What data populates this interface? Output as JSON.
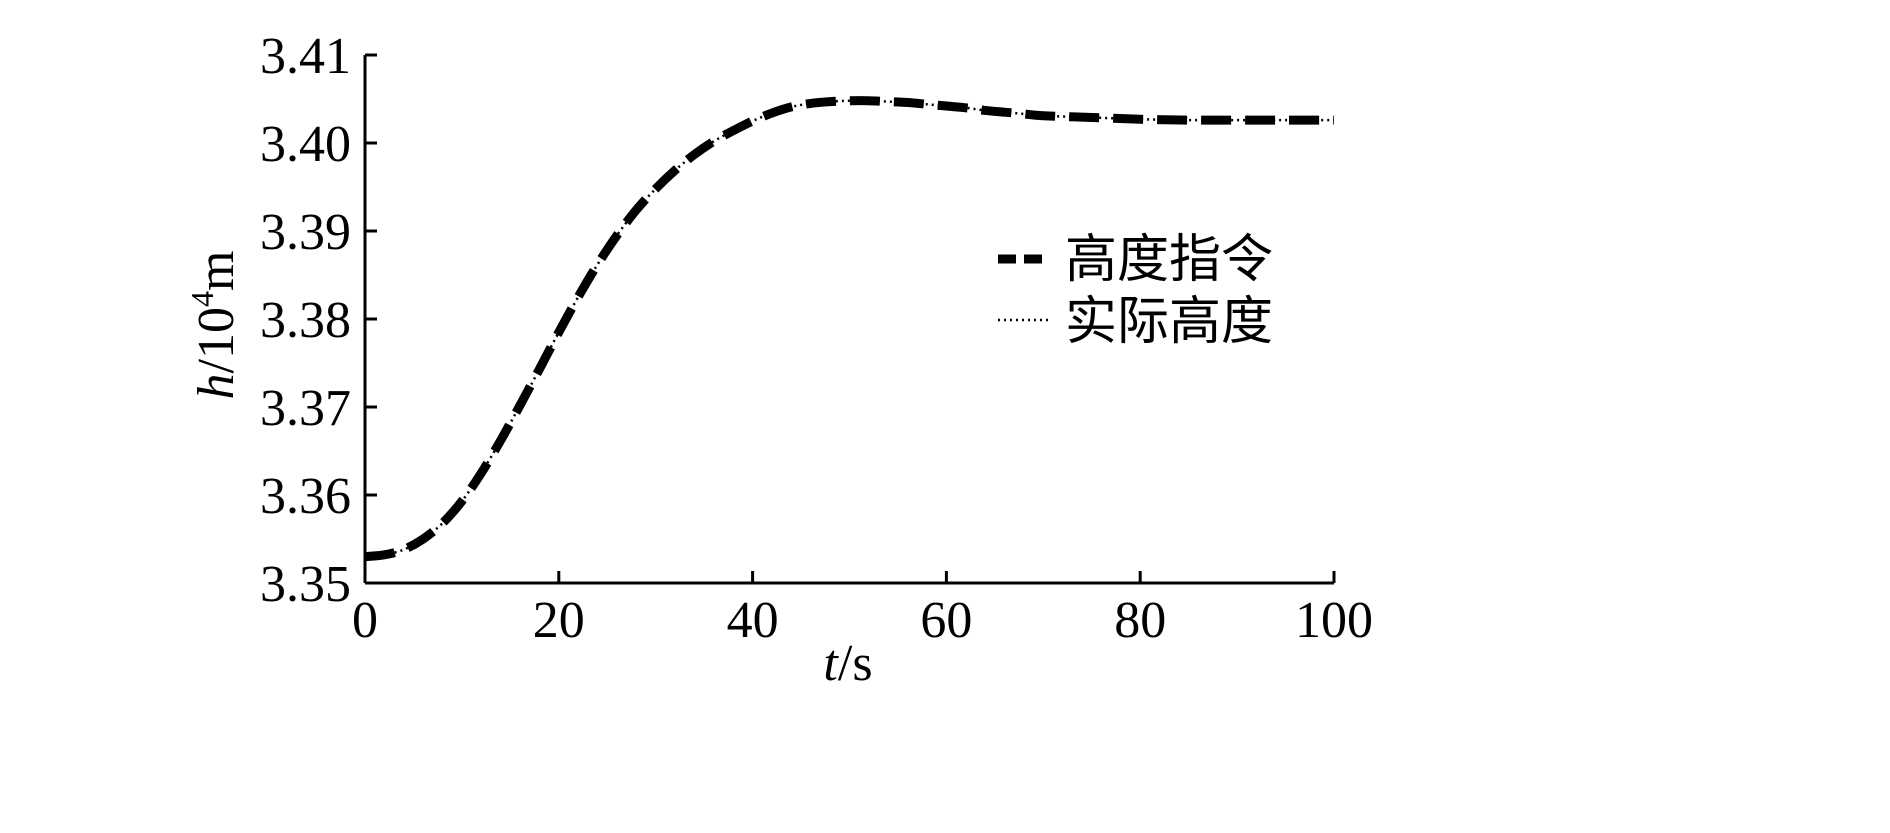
{
  "chart_data": {
    "type": "line",
    "title": "",
    "xlabel_var": "t",
    "xlabel_unit": "/s",
    "ylabel_var": "h",
    "ylabel_unit_pre": "/10",
    "ylabel_unit_exp": "4",
    "ylabel_unit_post": "m",
    "xlim": [
      0,
      100
    ],
    "ylim": [
      3.35,
      3.41
    ],
    "xticks": [
      0,
      20,
      40,
      60,
      80,
      100
    ],
    "xtick_labels": [
      "0",
      "20",
      "40",
      "60",
      "80",
      "100"
    ],
    "yticks": [
      3.35,
      3.36,
      3.37,
      3.38,
      3.39,
      3.4,
      3.41
    ],
    "ytick_labels": [
      "3.35",
      "3.36",
      "3.37",
      "3.38",
      "3.39",
      "3.40",
      "3.41"
    ],
    "grid": false,
    "legend_position": "center-right",
    "series": [
      {
        "name": "高度指令",
        "style": "dashed-thick",
        "color": "#000000",
        "x": [
          0,
          2,
          4,
          6,
          8,
          10,
          12,
          14,
          16,
          18,
          20,
          22,
          24,
          26,
          28,
          30,
          32,
          34,
          36,
          38,
          40,
          42,
          44,
          46,
          48,
          50,
          52,
          54,
          56,
          58,
          60,
          62,
          64,
          66,
          68,
          70,
          75,
          80,
          85,
          90,
          95,
          100
        ],
        "y": [
          3.353,
          3.3532,
          3.3538,
          3.355,
          3.3568,
          3.3593,
          3.3625,
          3.3662,
          3.3702,
          3.3743,
          3.3785,
          3.3825,
          3.3862,
          3.3895,
          3.3924,
          3.3948,
          3.3969,
          3.3987,
          3.4002,
          3.4014,
          3.4025,
          3.4034,
          3.4041,
          3.4045,
          3.4047,
          3.4048,
          3.4048,
          3.4047,
          3.4046,
          3.4044,
          3.4042,
          3.404,
          3.4037,
          3.4035,
          3.4033,
          3.4031,
          3.4029,
          3.4027,
          3.4026,
          3.4026,
          3.4026,
          3.4026
        ]
      },
      {
        "name": "实际高度",
        "style": "dotted-thin",
        "color": "#000000",
        "x": [
          0,
          2,
          4,
          6,
          8,
          10,
          12,
          14,
          16,
          18,
          20,
          22,
          24,
          26,
          28,
          30,
          32,
          34,
          36,
          38,
          40,
          42,
          44,
          46,
          48,
          50,
          52,
          54,
          56,
          58,
          60,
          62,
          64,
          66,
          68,
          70,
          75,
          80,
          85,
          90,
          95,
          100
        ],
        "y": [
          3.353,
          3.3532,
          3.3538,
          3.355,
          3.3568,
          3.3593,
          3.3625,
          3.3662,
          3.3702,
          3.3743,
          3.3785,
          3.3825,
          3.3862,
          3.3895,
          3.3924,
          3.3948,
          3.3969,
          3.3987,
          3.4002,
          3.4014,
          3.4025,
          3.4034,
          3.4041,
          3.4045,
          3.4047,
          3.4048,
          3.4048,
          3.4047,
          3.4046,
          3.4044,
          3.4042,
          3.404,
          3.4037,
          3.4035,
          3.4033,
          3.4031,
          3.4029,
          3.4027,
          3.4026,
          3.4026,
          3.4026,
          3.4026
        ]
      }
    ]
  }
}
